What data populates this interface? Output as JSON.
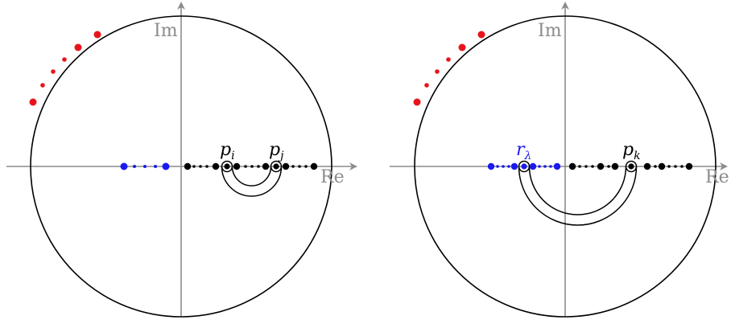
{
  "colors": {
    "axis": "#8c8c8c",
    "circle": "#000000",
    "red": "#e8141c",
    "blue": "#1a1aef",
    "black": "#000000"
  },
  "axis_labels": {
    "real": "Re",
    "imag": "Im"
  },
  "panels": [
    {
      "id": "left",
      "labels": [
        {
          "base": "p",
          "sub": "i",
          "color": "black"
        },
        {
          "base": "p",
          "sub": "j",
          "color": "black"
        }
      ]
    },
    {
      "id": "right",
      "labels": [
        {
          "base": "r",
          "sub": "λ",
          "color": "blue"
        },
        {
          "base": "p",
          "sub": "k",
          "color": "black"
        }
      ]
    }
  ]
}
